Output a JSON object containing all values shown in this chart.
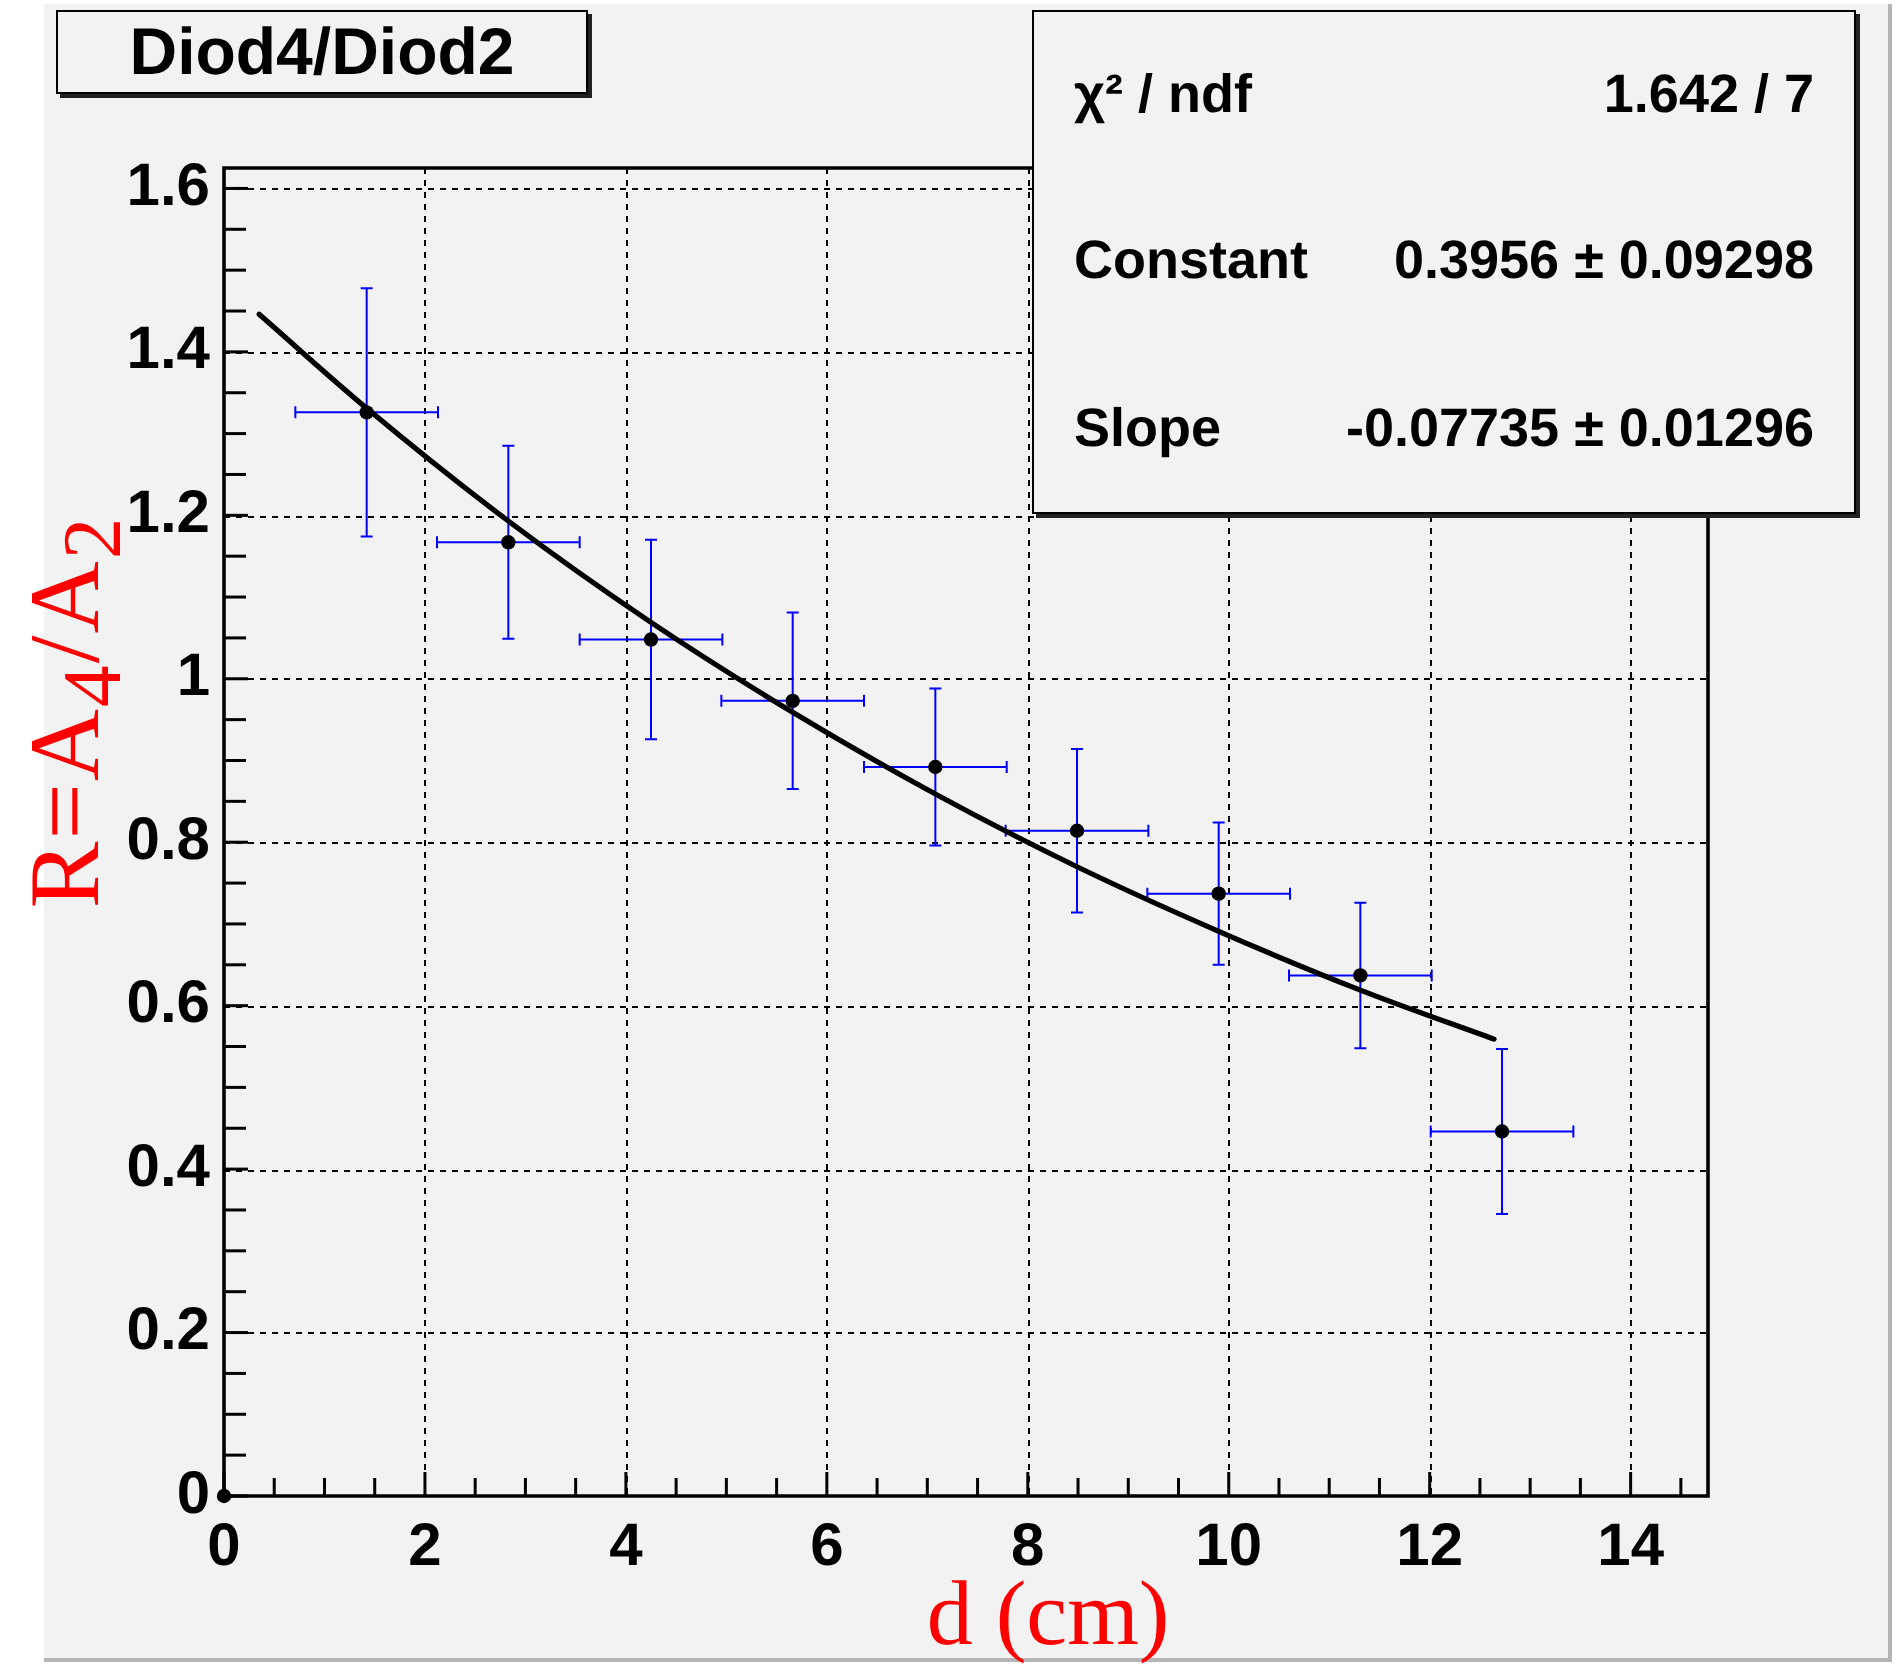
{
  "chart_data": {
    "type": "scatter",
    "title": "Diod4/Diod2",
    "xlabel": "d (cm)",
    "ylabel": "R=A$_{4}$/A$_{2}$",
    "annotations": [
      "χ² / ndf",
      "1.642 / 7",
      "Constant",
      "0.3956 ± 0.09298",
      "Slope",
      "-0.07735 ± 0.01296"
    ],
    "xlim": [
      0,
      14.77
    ],
    "ylim": [
      0,
      1.625
    ],
    "xticks": [
      0,
      {
        "value": 0.5,
        "label": null
      },
      {
        "value": 1,
        "label": null
      },
      {
        "value": 1.5,
        "label": null
      },
      2,
      {
        "value": 2.5,
        "label": null
      },
      {
        "value": 3,
        "label": null
      },
      {
        "value": 3.5,
        "label": null
      },
      4,
      {
        "value": 4.5,
        "label": null
      },
      {
        "value": 5,
        "label": null
      },
      {
        "value": 5.5,
        "label": null
      },
      6,
      {
        "value": 6.5,
        "label": null
      },
      {
        "value": 7,
        "label": null
      },
      {
        "value": 7.5,
        "label": null
      },
      8,
      {
        "value": 8.5,
        "label": null
      },
      {
        "value": 9,
        "label": null
      },
      {
        "value": 9.5,
        "label": null
      },
      10,
      {
        "value": 10.5,
        "label": null
      },
      {
        "value": 11,
        "label": null
      },
      {
        "value": 11.5,
        "label": null
      },
      12,
      {
        "value": 12.5,
        "label": null
      },
      {
        "value": 13,
        "label": null
      },
      {
        "value": 13.5,
        "label": null
      },
      14,
      {
        "value": 14.5,
        "label": null
      }
    ],
    "yticks": [
      0,
      {
        "value": 0.05,
        "label": null
      },
      {
        "value": 0.1,
        "label": null
      },
      {
        "value": 0.15,
        "label": null
      },
      0.2,
      {
        "value": 0.25,
        "label": null
      },
      {
        "value": 0.3,
        "label": null
      },
      {
        "value": 0.35,
        "label": null
      },
      0.4,
      {
        "value": 0.45,
        "label": null
      },
      {
        "value": 0.5,
        "label": null
      },
      {
        "value": 0.55,
        "label": null
      },
      0.6,
      {
        "value": 0.65,
        "label": null
      },
      {
        "value": 0.7,
        "label": null
      },
      {
        "value": 0.75,
        "label": null
      },
      0.8,
      {
        "value": 0.85,
        "label": null
      },
      {
        "value": 0.9,
        "label": null
      },
      {
        "value": 0.95,
        "label": null
      },
      1,
      {
        "value": 1.05,
        "label": null
      },
      {
        "value": 1.1,
        "label": null
      },
      {
        "value": 1.15,
        "label": null
      },
      1.2,
      {
        "value": 1.25,
        "label": null
      },
      {
        "value": 1.3,
        "label": null
      },
      {
        "value": 1.35,
        "label": null
      },
      1.4,
      {
        "value": 1.45,
        "label": null
      },
      {
        "value": 1.5,
        "label": null
      },
      {
        "value": 1.55,
        "label": null
      },
      1.6
    ],
    "grid": true,
    "marker": "circle",
    "series": [
      {
        "type": "scatter",
        "color": "#000000",
        "x": [
          0,
          1.42,
          2.83,
          4.25,
          5.66,
          7.08,
          8.49,
          9.9,
          11.31,
          12.72
        ],
        "values": [
          0,
          1.326,
          1.167,
          1.048,
          0.973,
          0.892,
          0.814,
          0.737,
          0.637,
          0.446
        ],
        "errors": [
          null,
          0.152,
          0.118,
          0.122,
          0.108,
          0.096,
          0.1,
          0.087,
          0.089,
          0.101
        ],
        "xerrors": [
          null,
          0.71,
          0.71,
          0.71,
          0.71,
          0.71,
          0.71,
          0.71,
          0.71,
          0.71
        ]
      },
      {
        "type": "line",
        "color": "#000000",
        "marker": "none",
        "x": [
          0.35,
          1.42,
          2.83,
          4.25,
          5.66,
          7.08,
          8.49,
          9.9,
          11.31,
          12.64
        ],
        "values": [
          1.446,
          1.331,
          1.193,
          1.069,
          0.959,
          0.859,
          0.77,
          0.691,
          0.619,
          0.559
        ]
      }
    ]
  }
}
